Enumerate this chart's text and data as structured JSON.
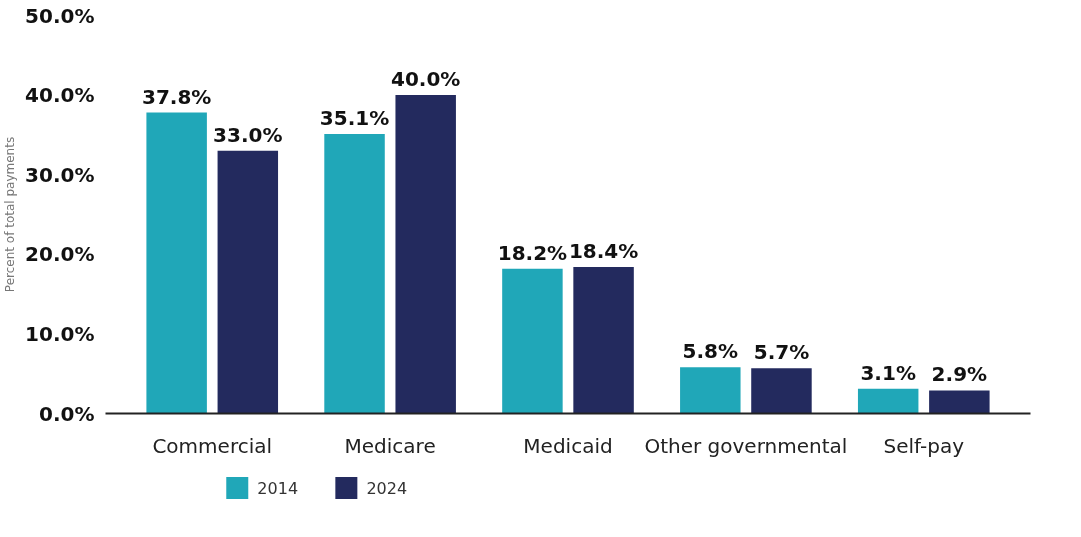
{
  "chart_data": {
    "type": "bar",
    "ylabel": "Percent of total payments",
    "categories": [
      "Commercial",
      "Medicare",
      "Medicaid",
      "Other governmental",
      "Self-pay"
    ],
    "series": [
      {
        "name": "2014",
        "color": "#20a7b8",
        "values": [
          37.8,
          35.1,
          18.2,
          5.8,
          3.1
        ],
        "value_labels": [
          "37.8%",
          "35.1%",
          "18.2%",
          "5.8%",
          "3.1%"
        ]
      },
      {
        "name": "2024",
        "color": "#232a5e",
        "values": [
          33.0,
          40.0,
          18.4,
          5.7,
          2.9
        ],
        "value_labels": [
          "33.0%",
          "40.0%",
          "18.4%",
          "5.7%",
          "2.9%"
        ]
      }
    ],
    "ylim": [
      0,
      50
    ],
    "yticks": [
      {
        "value": 0,
        "label": "0.0%"
      },
      {
        "value": 10,
        "label": "10.0%"
      },
      {
        "value": 20,
        "label": "20.0%"
      },
      {
        "value": 30,
        "label": "30.0%"
      },
      {
        "value": 40,
        "label": "40.0%"
      },
      {
        "value": 50,
        "label": "50.0%"
      }
    ],
    "grid": false,
    "legend": "bottom left"
  }
}
